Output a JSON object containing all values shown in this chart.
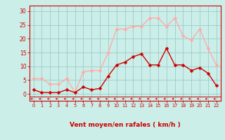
{
  "x": [
    0,
    1,
    2,
    3,
    4,
    5,
    6,
    7,
    8,
    9,
    10,
    11,
    12,
    13,
    14,
    15,
    16,
    17,
    18,
    19,
    20,
    21,
    22
  ],
  "y_mean": [
    1.5,
    0.5,
    0.5,
    0.5,
    1.5,
    0.5,
    2.5,
    1.5,
    2.0,
    6.5,
    10.5,
    11.5,
    13.5,
    14.5,
    10.5,
    10.5,
    16.5,
    10.5,
    10.5,
    8.5,
    9.5,
    7.5,
    3.0
  ],
  "y_gust": [
    5.5,
    5.5,
    3.5,
    3.5,
    5.5,
    0.5,
    8.0,
    8.5,
    8.5,
    15.0,
    23.5,
    23.5,
    24.5,
    24.5,
    27.5,
    27.5,
    24.5,
    27.5,
    21.0,
    19.5,
    23.5,
    16.5,
    10.5
  ],
  "color_mean": "#cc0000",
  "color_gust": "#ffaaaa",
  "bg_color": "#cceee8",
  "grid_color": "#99cccc",
  "xlabel": "Vent moyen/en rafales ( km/h )",
  "ylabel_ticks": [
    0,
    5,
    10,
    15,
    20,
    25,
    30
  ],
  "ylim": [
    -2.5,
    32
  ],
  "xlim": [
    -0.5,
    22.5
  ]
}
